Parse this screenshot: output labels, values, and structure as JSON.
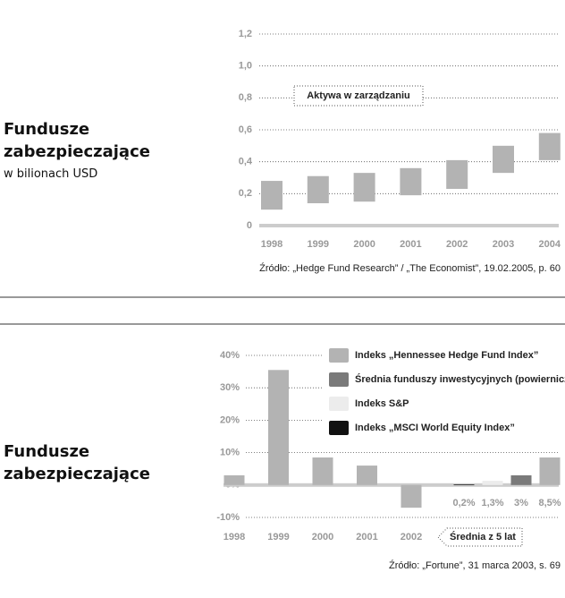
{
  "chart_data": [
    {
      "type": "range_bar",
      "title": "Fundusze zabezpieczające",
      "subtitle": "w bilionach USD",
      "annotation": "Aktywa w zarządzaniu",
      "source": "Źródło: „Hedge Fund Research” / „The Economist”, 19.02.2005, p. 60",
      "categories": [
        "1998",
        "1999",
        "2000",
        "2001",
        "2002",
        "2003",
        "2004"
      ],
      "low": [
        0.1,
        0.14,
        0.15,
        0.19,
        0.23,
        0.33,
        0.41
      ],
      "high": [
        0.28,
        0.31,
        0.33,
        0.36,
        0.41,
        0.5,
        0.58
      ],
      "color": "#b3b3b3",
      "ylim": [
        0,
        1.2
      ],
      "yticks": [
        0,
        {
          "value": 0.2,
          "label": "0,2"
        },
        {
          "value": 0.4,
          "label": "0,4"
        },
        {
          "value": 0.6,
          "label": "0,6"
        },
        {
          "value": 0.8,
          "label": "0,8"
        },
        {
          "value": 1.0,
          "label": "1,0"
        },
        {
          "value": 1.2,
          "label": "1,2"
        }
      ],
      "grid": true
    },
    {
      "type": "bar",
      "title": "Fundusze zabezpieczające",
      "annotation": "Średnia z 5 lat",
      "source": "Źródło: „Fortune”, 31 marca 2003, s. 69",
      "categories": [
        "1998",
        "1999",
        "2000",
        "2001",
        "2002"
      ],
      "series": [
        {
          "name": "Indeks „Hennessee Hedge Fund Index”",
          "color": "#b3b3b3",
          "values": [
            3,
            35.5,
            8.5,
            6,
            -7
          ],
          "average": 8.5,
          "average_label": "8,5%"
        },
        {
          "name": "Średnia funduszy inwestycyjnych (powierniczych)",
          "color": "#7a7a7a",
          "average": 3,
          "average_label": "3%"
        },
        {
          "name": "Indeks S&P",
          "color": "#ececec",
          "average": 1.3,
          "average_label": "1,3%"
        },
        {
          "name": "Indeks „MSCI World Equity Index”",
          "color": "#111111",
          "average": 0.2,
          "average_label": "0,2%"
        }
      ],
      "ylim": [
        -10,
        40
      ],
      "yticks": [
        {
          "value": -10,
          "label": "-10%"
        },
        {
          "value": 0,
          "label": "0%"
        },
        {
          "value": 10,
          "label": "10%"
        },
        {
          "value": 20,
          "label": "20%"
        },
        {
          "value": 30,
          "label": "30%"
        },
        {
          "value": 40,
          "label": "40%"
        }
      ],
      "grid": true
    }
  ]
}
